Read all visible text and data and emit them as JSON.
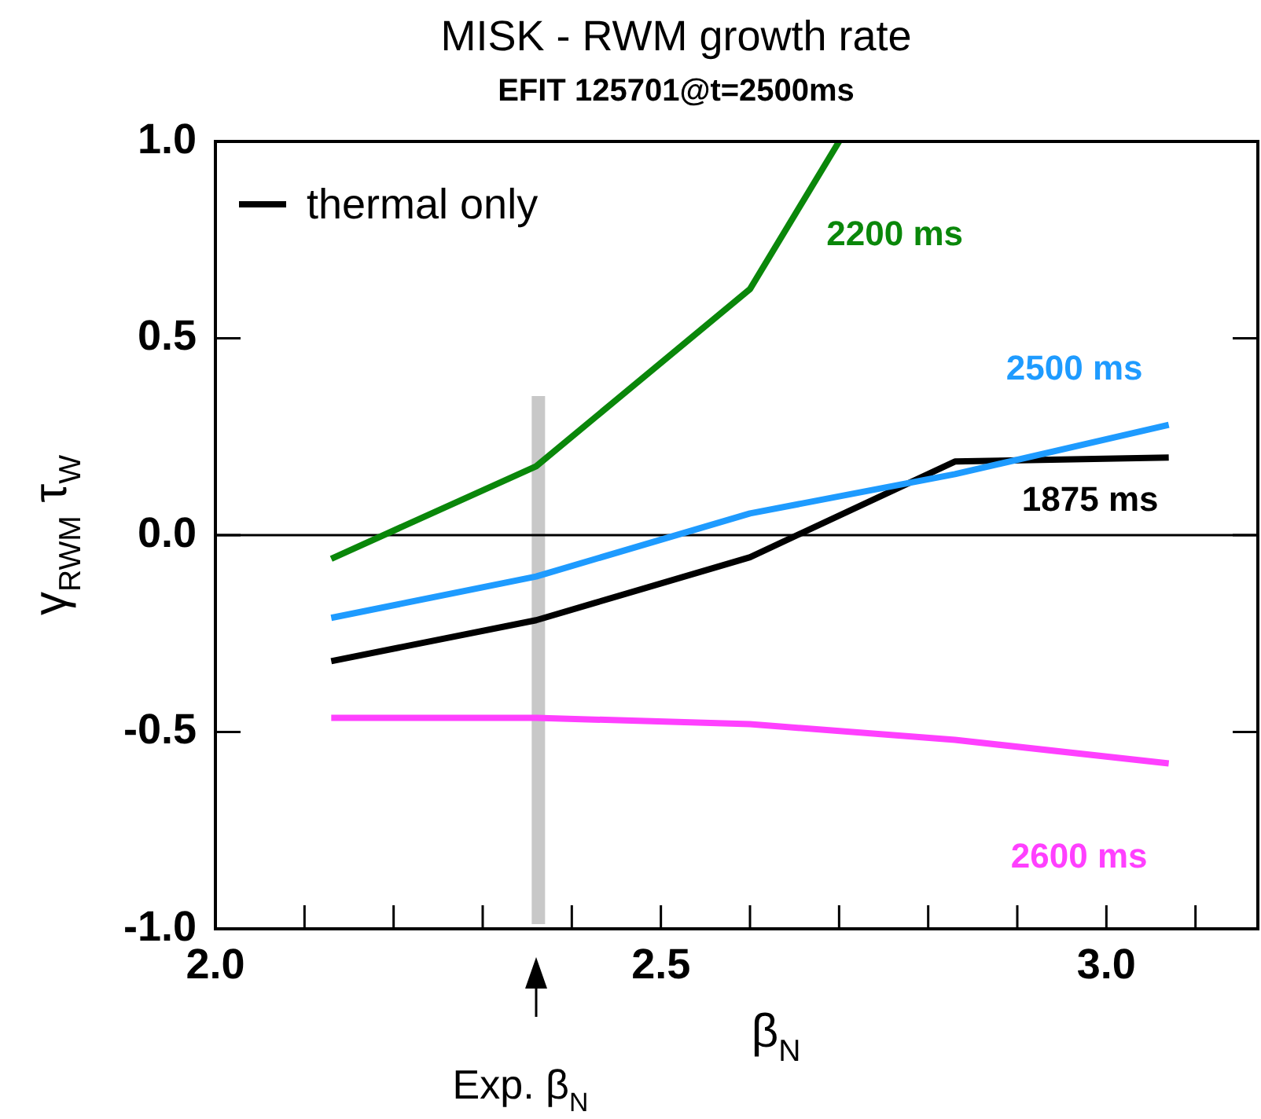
{
  "chart_data": {
    "type": "line",
    "title": "MISK - RWM growth rate",
    "subtitle": "EFIT 125701@t=2500ms",
    "xlabel": "β$_{N}$",
    "ylabel": "γ$_{RWM}$ τ$_{W}$",
    "x": [
      2.13,
      2.36,
      2.6,
      2.83,
      3.07
    ],
    "series": [
      {
        "name": "2200 ms",
        "color": "#0a870a",
        "x": [
          2.13,
          2.36,
          2.6,
          2.7
        ],
        "values": [
          -0.06,
          0.175,
          0.625,
          1.0
        ]
      },
      {
        "name": "2500 ms",
        "color": "#1e9bff",
        "values": [
          -0.21,
          -0.105,
          0.055,
          0.155,
          0.28
        ]
      },
      {
        "name": "1875 ms",
        "color": "#000000",
        "values": [
          -0.32,
          -0.216,
          -0.056,
          0.187,
          0.197
        ]
      },
      {
        "name": "2600 ms",
        "color": "#ff40ff",
        "values": [
          -0.464,
          -0.464,
          -0.48,
          -0.52,
          -0.58
        ]
      }
    ],
    "xlim": [
      2.0,
      3.17
    ],
    "xticks": [
      {
        "value": 2.0,
        "label": "2.0"
      },
      {
        "value": 2.1,
        "label": null
      },
      {
        "value": 2.2,
        "label": null
      },
      {
        "value": 2.3,
        "label": null
      },
      {
        "value": 2.4,
        "label": null
      },
      {
        "value": 2.5,
        "label": "2.5"
      },
      {
        "value": 2.6,
        "label": null
      },
      {
        "value": 2.7,
        "label": null
      },
      {
        "value": 2.8,
        "label": null
      },
      {
        "value": 2.9,
        "label": null
      },
      {
        "value": 3.0,
        "label": "3.0"
      },
      {
        "value": 3.1,
        "label": null
      }
    ],
    "ylim": [
      -1.0,
      1.0
    ],
    "yticks": [
      {
        "value": -1.0,
        "label": "-1.0"
      },
      {
        "value": -0.5,
        "label": "-0.5"
      },
      {
        "value": 0,
        "label": "0.0"
      },
      {
        "value": 0.5,
        "label": "0.5"
      },
      {
        "value": 1.0,
        "label": "1.0"
      }
    ],
    "ref_lines": [
      {
        "axis": "y",
        "value": 0,
        "color": "#000000"
      }
    ],
    "bands": [
      {
        "axis": "x",
        "from": 2.355,
        "to": 2.37,
        "color": "#c8c8c8"
      }
    ],
    "annotations": [
      "thermal only",
      {
        "text": "Exp. β$_{N}$",
        "x": 2.36
      }
    ],
    "grid": false,
    "legend": false,
    "marker": "none",
    "line_style": "solid"
  }
}
